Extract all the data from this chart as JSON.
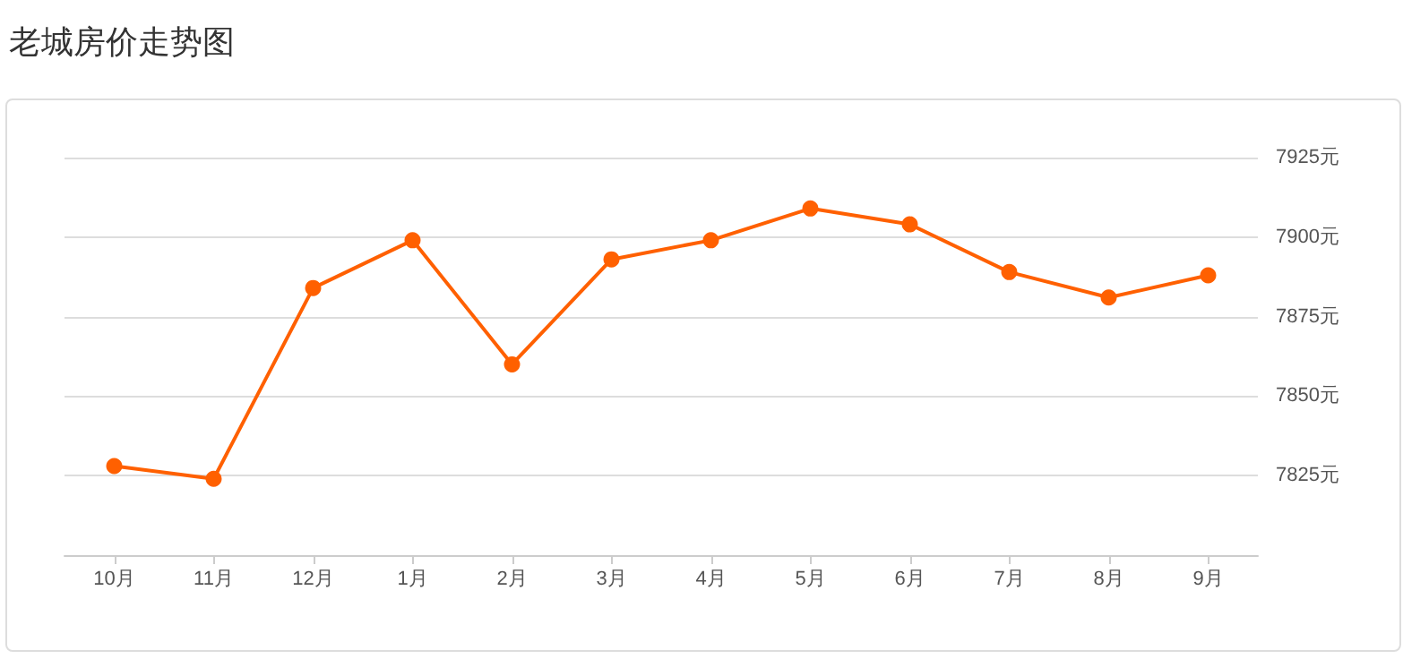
{
  "chart_data": {
    "type": "line",
    "title": "老城房价走势图",
    "categories": [
      "10月",
      "11月",
      "12月",
      "1月",
      "2月",
      "3月",
      "4月",
      "5月",
      "6月",
      "7月",
      "8月",
      "9月"
    ],
    "series": [
      {
        "color": "#ff6000",
        "values": [
          7828,
          7824,
          7884,
          7899,
          7860,
          7893,
          7899,
          7909,
          7904,
          7889,
          7881,
          7888
        ]
      }
    ],
    "ylim": [
      7800,
      7925
    ],
    "yticks": [
      {
        "value": 7800,
        "label": null
      },
      {
        "value": 7825,
        "label": "7825元"
      },
      {
        "value": 7850,
        "label": "7850元"
      },
      {
        "value": 7875,
        "label": "7875元"
      },
      {
        "value": 7900,
        "label": "7900元"
      },
      {
        "value": 7925,
        "label": "7925元"
      }
    ],
    "grid": "y",
    "marker": "circle",
    "line_style": "solid"
  }
}
